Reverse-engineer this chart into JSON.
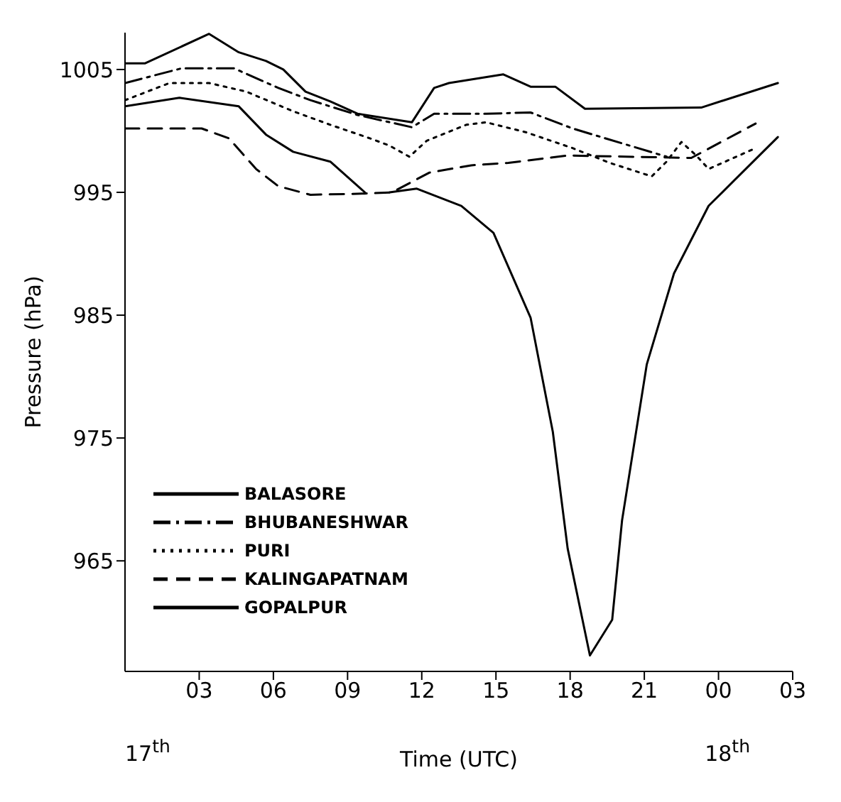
{
  "chart_data": {
    "type": "line",
    "xlabel": "Time (UTC)",
    "ylabel": "Pressure (hPa)",
    "xlim": [
      0,
      27
    ],
    "xticks": [
      {
        "value": 3,
        "label": "03"
      },
      {
        "value": 6,
        "label": "06"
      },
      {
        "value": 9,
        "label": "09"
      },
      {
        "value": 12,
        "label": "12"
      },
      {
        "value": 15,
        "label": "15"
      },
      {
        "value": 18,
        "label": "18"
      },
      {
        "value": 21,
        "label": "21"
      },
      {
        "value": 24,
        "label": "00"
      },
      {
        "value": 27,
        "label": "03"
      }
    ],
    "ylim": [
      956,
      1008
    ],
    "yticks": [
      965,
      975,
      985,
      995,
      1005
    ],
    "legend": "bottom left",
    "marker": "none",
    "annotations": [
      "17$^{th}$",
      "18$^{th}$"
    ],
    "series": [
      {
        "name": "BALASORE",
        "color": "#000000",
        "line_style": "solid",
        "x": [
          0,
          0.8,
          3.4,
          4.6,
          5.7,
          6.4,
          7.3,
          8.3,
          9.4,
          11.6,
          12.5,
          13.1,
          15.3,
          16.4,
          17.4,
          18.6,
          23.3,
          26.4
        ],
        "values": [
          1005.5,
          1005.5,
          1007.9,
          1006.4,
          1005.7,
          1005,
          1003.2,
          1002.4,
          1001.4,
          1000.7,
          1003.5,
          1003.9,
          1004.6,
          1003.6,
          1003.6,
          1001.8,
          1001.9,
          1003.9
        ]
      },
      {
        "name": "BHUBANESHWAR",
        "color": "#000000",
        "line_style": "dashdot",
        "x": [
          0,
          2.3,
          4.4,
          6.2,
          7.5,
          9.4,
          11.6,
          12.5,
          14.6,
          16.4,
          18.1,
          21.9
        ],
        "values": [
          1003.9,
          1005.1,
          1005.1,
          1003.5,
          1002.5,
          1001.3,
          1000.3,
          1001.4,
          1001.4,
          1001.5,
          1000.2,
          997.9
        ]
      },
      {
        "name": "PURI",
        "color": "#000000",
        "line_style": "dotted",
        "x": [
          0,
          1.8,
          3.4,
          4.9,
          6.8,
          8.3,
          9.9,
          10.7,
          11.5,
          12.2,
          13.8,
          14.6,
          16.2,
          18.1,
          19.6,
          21.3,
          21.9,
          22.5,
          23.1,
          23.6,
          25.5
        ],
        "values": [
          1002.5,
          1003.9,
          1003.9,
          1003.2,
          1001.6,
          1000.5,
          999.4,
          998.8,
          997.9,
          999.2,
          1000.5,
          1000.7,
          999.9,
          998.6,
          997.4,
          996.3,
          997.5,
          999.1,
          998,
          996.9,
          998.6
        ]
      },
      {
        "name": "KALINGAPATNAM",
        "color": "#000000",
        "line_style": "dashed",
        "x": [
          0,
          3.1,
          4.2,
          5.3,
          6.2,
          7.5,
          9.7,
          10.8,
          12.3,
          14,
          15.5,
          17.9,
          22.9,
          25.5
        ],
        "values": [
          1000.2,
          1000.2,
          999.4,
          996.9,
          995.5,
          994.8,
          994.9,
          995,
          996.6,
          997.2,
          997.4,
          998,
          997.8,
          1000.6
        ]
      },
      {
        "name": "GOPALPUR",
        "color": "#000000",
        "line_style": "solid",
        "x": [
          0,
          2.2,
          4.6,
          5.7,
          6.8,
          8.3,
          9.7,
          10.2,
          10.7,
          11.8,
          13.6,
          14.9,
          16.4,
          17.3,
          17.9,
          18.8,
          19.7,
          20.1,
          21.1,
          22.2,
          23.6,
          26.4
        ],
        "values": [
          1002,
          1002.7,
          1002,
          999.7,
          998.3,
          997.5,
          995,
          null,
          995,
          995.3,
          993.9,
          991.7,
          984.8,
          975.5,
          966,
          957.3,
          960.2,
          968.3,
          981,
          988.4,
          993.9,
          999.5
        ]
      }
    ]
  }
}
